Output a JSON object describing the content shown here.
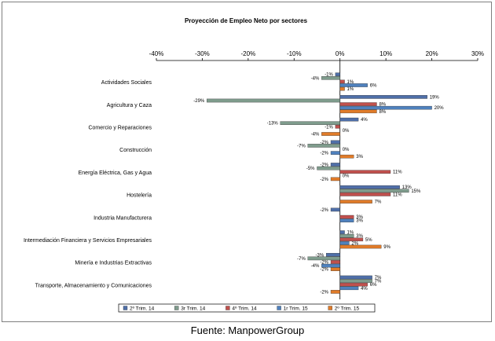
{
  "source": "Fuente: ManpowerGroup",
  "chart_data": {
    "type": "bar",
    "orientation": "horizontal",
    "title": "Proyección de Empleo Neto por sectores",
    "xlabel": "",
    "ylabel": "",
    "xlim": [
      -40,
      30
    ],
    "x_ticks": [
      "-40%",
      "-30%",
      "-20%",
      "-10%",
      "0%",
      "10%",
      "20%",
      "30%"
    ],
    "x_tick_values": [
      -40,
      -30,
      -20,
      -10,
      0,
      10,
      20,
      30
    ],
    "axis_position": "top",
    "grid": false,
    "legend_position": "bottom",
    "categories": [
      "Actividades Sociales",
      "Agricultura y Caza",
      "Comercio y Reparaciones",
      "Construcción",
      "Energía Eléctrica, Gas y Agua",
      "Hostelería",
      "Industria Manufacturera",
      "Intermediación Financiera y Servicios Empresariales",
      "Minería e Industrias Extractivas",
      "Transporte, Almacenamiento y Comunicaciones"
    ],
    "series": [
      {
        "name": "2º Trim. 14",
        "color": "#4f6fa8",
        "values": [
          -1,
          19,
          4,
          -2,
          -2,
          13,
          -2,
          1,
          -3,
          7
        ],
        "labels": [
          "-1%",
          "19%",
          "4%",
          "-2%",
          "-2%",
          "13%",
          "-2%",
          "1%",
          "-3%",
          "7%"
        ]
      },
      {
        "name": "3r Trim. 14",
        "color": "#7f9c8d",
        "values": [
          -4,
          -29,
          -13,
          -7,
          -5,
          15,
          0,
          3,
          -7,
          7
        ],
        "labels": [
          "-4%",
          "-29%",
          "-13%",
          "-7%",
          "-5%",
          "15%",
          "",
          "3%",
          "-7%",
          "7%"
        ]
      },
      {
        "name": "4º Trim. 14",
        "color": "#c0504d",
        "values": [
          1,
          8,
          -1,
          0,
          11,
          11,
          3,
          5,
          -2,
          6
        ],
        "labels": [
          "1%",
          "8%",
          "-1%",
          "0%",
          "11%",
          "11%",
          "3%",
          "5%",
          "-2%",
          "6%"
        ]
      },
      {
        "name": "1r Trim. 15",
        "color": "#4f81bd",
        "values": [
          6,
          20,
          0,
          -2,
          0,
          0,
          3,
          2,
          -4,
          4
        ],
        "labels": [
          "6%",
          "20%",
          "0%",
          "-2%",
          "0%",
          "",
          "3%",
          "2%",
          "-4%",
          "4%"
        ]
      },
      {
        "name": "2º Trim. 15",
        "color": "#e07b29",
        "values": [
          1,
          8,
          -4,
          3,
          -2,
          7,
          0,
          9,
          -2,
          -2
        ],
        "labels": [
          "1%",
          "8%",
          "-4%",
          "3%",
          "-2%",
          "7%",
          "",
          "9%",
          "-2%",
          "-2%"
        ]
      }
    ]
  }
}
